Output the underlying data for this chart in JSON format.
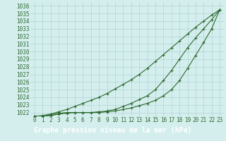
{
  "title": "Graphe pression niveau de la mer (hPa)",
  "x": [
    0,
    1,
    2,
    3,
    4,
    5,
    6,
    7,
    8,
    9,
    10,
    11,
    12,
    13,
    14,
    15,
    16,
    17,
    18,
    19,
    20,
    21,
    22,
    23
  ],
  "line1": [
    1021.5,
    1021.6,
    1021.8,
    1022.1,
    1022.4,
    1022.8,
    1023.2,
    1023.6,
    1024.0,
    1024.5,
    1025.1,
    1025.7,
    1026.3,
    1027.0,
    1027.8,
    1028.7,
    1029.6,
    1030.5,
    1031.4,
    1032.3,
    1033.2,
    1034.0,
    1034.8,
    1035.5
  ],
  "line2": [
    1021.5,
    1021.5,
    1021.7,
    1021.9,
    1022.0,
    1022.0,
    1022.0,
    1022.0,
    1022.1,
    1022.2,
    1022.4,
    1022.8,
    1023.2,
    1023.7,
    1024.2,
    1025.0,
    1026.2,
    1027.5,
    1029.0,
    1030.5,
    1031.8,
    1033.0,
    1034.2,
    1035.5
  ],
  "line3": [
    1021.5,
    1021.5,
    1021.6,
    1021.8,
    1021.9,
    1022.0,
    1022.0,
    1022.0,
    1022.0,
    1022.1,
    1022.2,
    1022.4,
    1022.6,
    1022.9,
    1023.2,
    1023.6,
    1024.2,
    1025.0,
    1026.2,
    1027.8,
    1029.5,
    1031.2,
    1033.0,
    1035.5
  ],
  "line_color": "#2d6a2d",
  "bg_color": "#d4eeee",
  "grid_color": "#aacccc",
  "text_color": "#2d6a2d",
  "ylim": [
    1021.5,
    1036.5
  ],
  "yticks": [
    1022,
    1023,
    1024,
    1025,
    1026,
    1027,
    1028,
    1029,
    1030,
    1031,
    1032,
    1033,
    1034,
    1035,
    1036
  ],
  "marker": "+",
  "marker_size": 3,
  "line_width": 0.8,
  "title_fontsize": 7,
  "tick_fontsize": 5.5,
  "bottom_bg": "#2d6a2d"
}
